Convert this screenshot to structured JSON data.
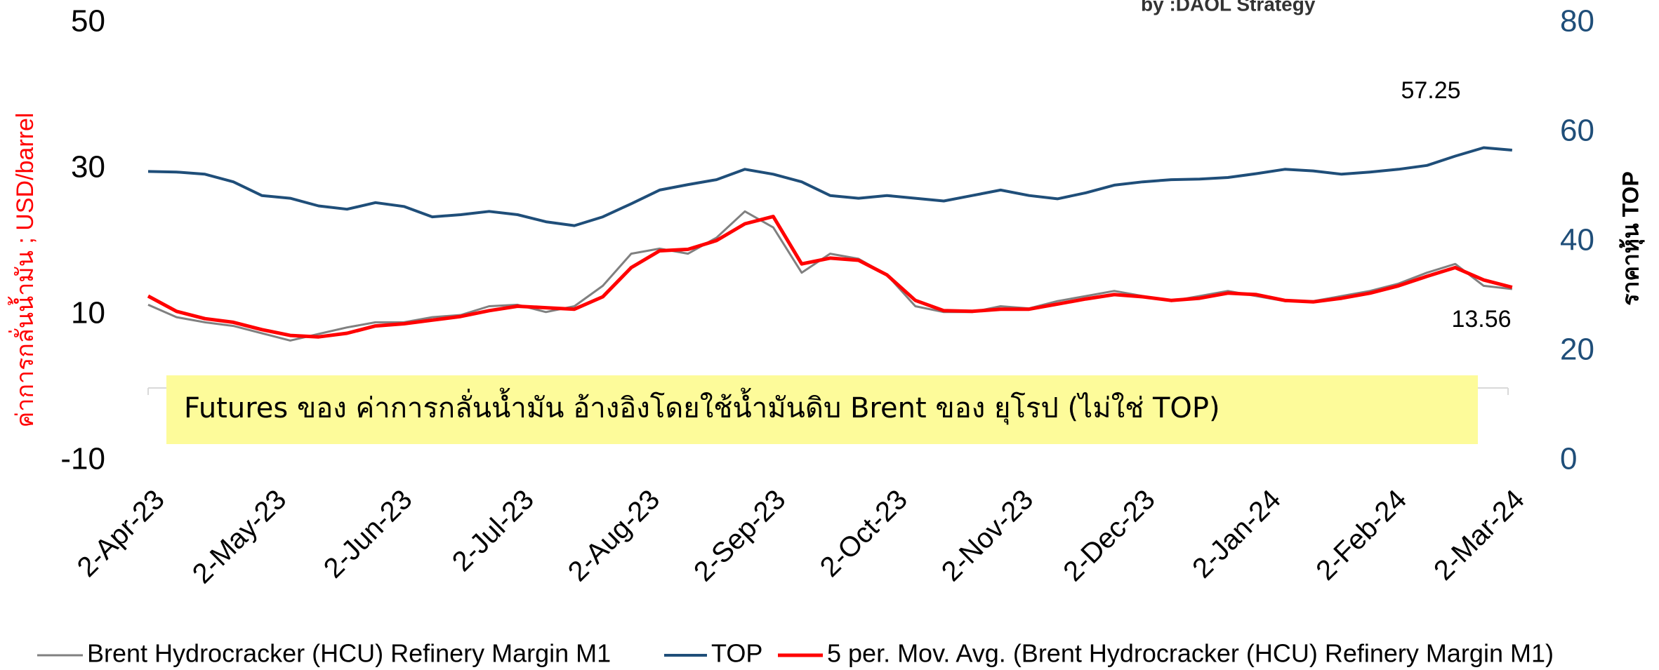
{
  "chart_data": {
    "type": "line",
    "source": "by :DAOL Strategy",
    "ylabel": "ค่าการกลั่นน้ำมัน ; USD/barrel",
    "y2label": "ราคาหุ้น TOP",
    "note": "Futures ของ ค่าการกลั่นน้ำมัน อ้างอิงโดยใช้น้ำมันดิบ Brent ของ ยุโรป (ไม่ใช่ TOP)",
    "annotations": [
      "57.25",
      "13.56"
    ],
    "x": [
      "2023-04-02",
      "2023-04-09",
      "2023-04-16",
      "2023-04-23",
      "2023-04-30",
      "2023-05-07",
      "2023-05-14",
      "2023-05-21",
      "2023-05-28",
      "2023-06-04",
      "2023-06-11",
      "2023-06-18",
      "2023-06-25",
      "2023-07-02",
      "2023-07-09",
      "2023-07-16",
      "2023-07-23",
      "2023-07-30",
      "2023-08-06",
      "2023-08-13",
      "2023-08-20",
      "2023-08-27",
      "2023-09-03",
      "2023-09-10",
      "2023-09-17",
      "2023-09-24",
      "2023-10-01",
      "2023-10-08",
      "2023-10-15",
      "2023-10-22",
      "2023-10-29",
      "2023-11-05",
      "2023-11-12",
      "2023-11-19",
      "2023-11-26",
      "2023-12-03",
      "2023-12-10",
      "2023-12-17",
      "2023-12-24",
      "2023-12-31",
      "2024-01-07",
      "2024-01-14",
      "2024-01-21",
      "2024-01-28",
      "2024-02-04",
      "2024-02-11",
      "2024-02-18",
      "2024-02-25",
      "2024-03-03"
    ],
    "series": [
      {
        "name": "Brent Hydrocracker (HCU) Refinery Margin M1",
        "color": "#808080",
        "width": 3,
        "values": [
          11.4,
          9.7,
          9,
          8.5,
          7.5,
          6.5,
          7.4,
          8.3,
          9,
          9,
          9.7,
          10,
          11.2,
          11.4,
          10.4,
          11.2,
          14,
          18.4,
          19.1,
          18.4,
          20.6,
          24.2,
          22,
          15.8,
          18.4,
          17.7,
          15.5,
          11.2,
          10.4,
          10.4,
          11.2,
          10.9,
          11.9,
          12.6,
          13.3,
          12.6,
          11.9,
          12.6,
          13.3,
          12.6,
          11.9,
          11.9,
          12.6,
          13.3,
          14.3,
          15.8,
          17,
          14,
          13.56
        ]
      },
      {
        "name": "TOP",
        "color": "#1f4e79",
        "width": 4,
        "axis": "y2",
        "values": [
          52.9,
          52.8,
          52.4,
          51,
          48.5,
          48,
          46.6,
          46,
          47.2,
          46.5,
          44.6,
          45,
          45.6,
          45,
          43.7,
          43,
          44.6,
          47,
          49.5,
          50.5,
          51.4,
          53.3,
          52.4,
          51,
          48.5,
          48,
          48.5,
          48,
          47.5,
          48.5,
          49.5,
          48.5,
          47.9,
          49,
          50.4,
          51,
          51.4,
          51.5,
          51.8,
          52.5,
          53.3,
          53,
          52.4,
          52.8,
          53.3,
          54,
          55.7,
          57.25,
          56.8
        ]
      },
      {
        "name": "5 per. Mov. Avg. (Brent Hydrocracker (HCU) Refinery Margin M1)",
        "color": "#ff0000",
        "width": 5,
        "values": [
          12.6,
          10.5,
          9.5,
          9,
          8,
          7.2,
          7,
          7.5,
          8.5,
          8.8,
          9.3,
          9.8,
          10.6,
          11.2,
          11,
          10.8,
          12.5,
          16.5,
          18.8,
          19,
          20.2,
          22.5,
          23.5,
          17,
          17.8,
          17.5,
          15.5,
          12,
          10.6,
          10.5,
          10.8,
          10.8,
          11.5,
          12.2,
          12.8,
          12.5,
          12,
          12.3,
          13,
          12.8,
          12,
          11.8,
          12.3,
          13,
          14,
          15.3,
          16.5,
          14.8,
          13.8
        ]
      }
    ],
    "ylim": [
      -10,
      50
    ],
    "yticks": [
      -10,
      10,
      30,
      50
    ],
    "y2lim": [
      0,
      80
    ],
    "y2ticks": [
      0,
      20,
      40,
      60,
      80
    ],
    "xlim": [
      "2023-04-02",
      "2024-03-02"
    ],
    "xticks": [
      {
        "value": "2023-04-02",
        "label": "2-Apr-23"
      },
      {
        "value": "2023-05-02",
        "label": "2-May-23"
      },
      {
        "value": "2023-06-02",
        "label": "2-Jun-23"
      },
      {
        "value": "2023-07-02",
        "label": "2-Jul-23"
      },
      {
        "value": "2023-08-02",
        "label": "2-Aug-23"
      },
      {
        "value": "2023-09-02",
        "label": "2-Sep-23"
      },
      {
        "value": "2023-10-02",
        "label": "2-Oct-23"
      },
      {
        "value": "2023-11-02",
        "label": "2-Nov-23"
      },
      {
        "value": "2023-12-02",
        "label": "2-Dec-23"
      },
      {
        "value": "2024-01-02",
        "label": "2-Jan-24"
      },
      {
        "value": "2024-02-02",
        "label": "2-Feb-24"
      },
      {
        "value": "2024-03-02",
        "label": "2-Mar-24"
      }
    ]
  }
}
